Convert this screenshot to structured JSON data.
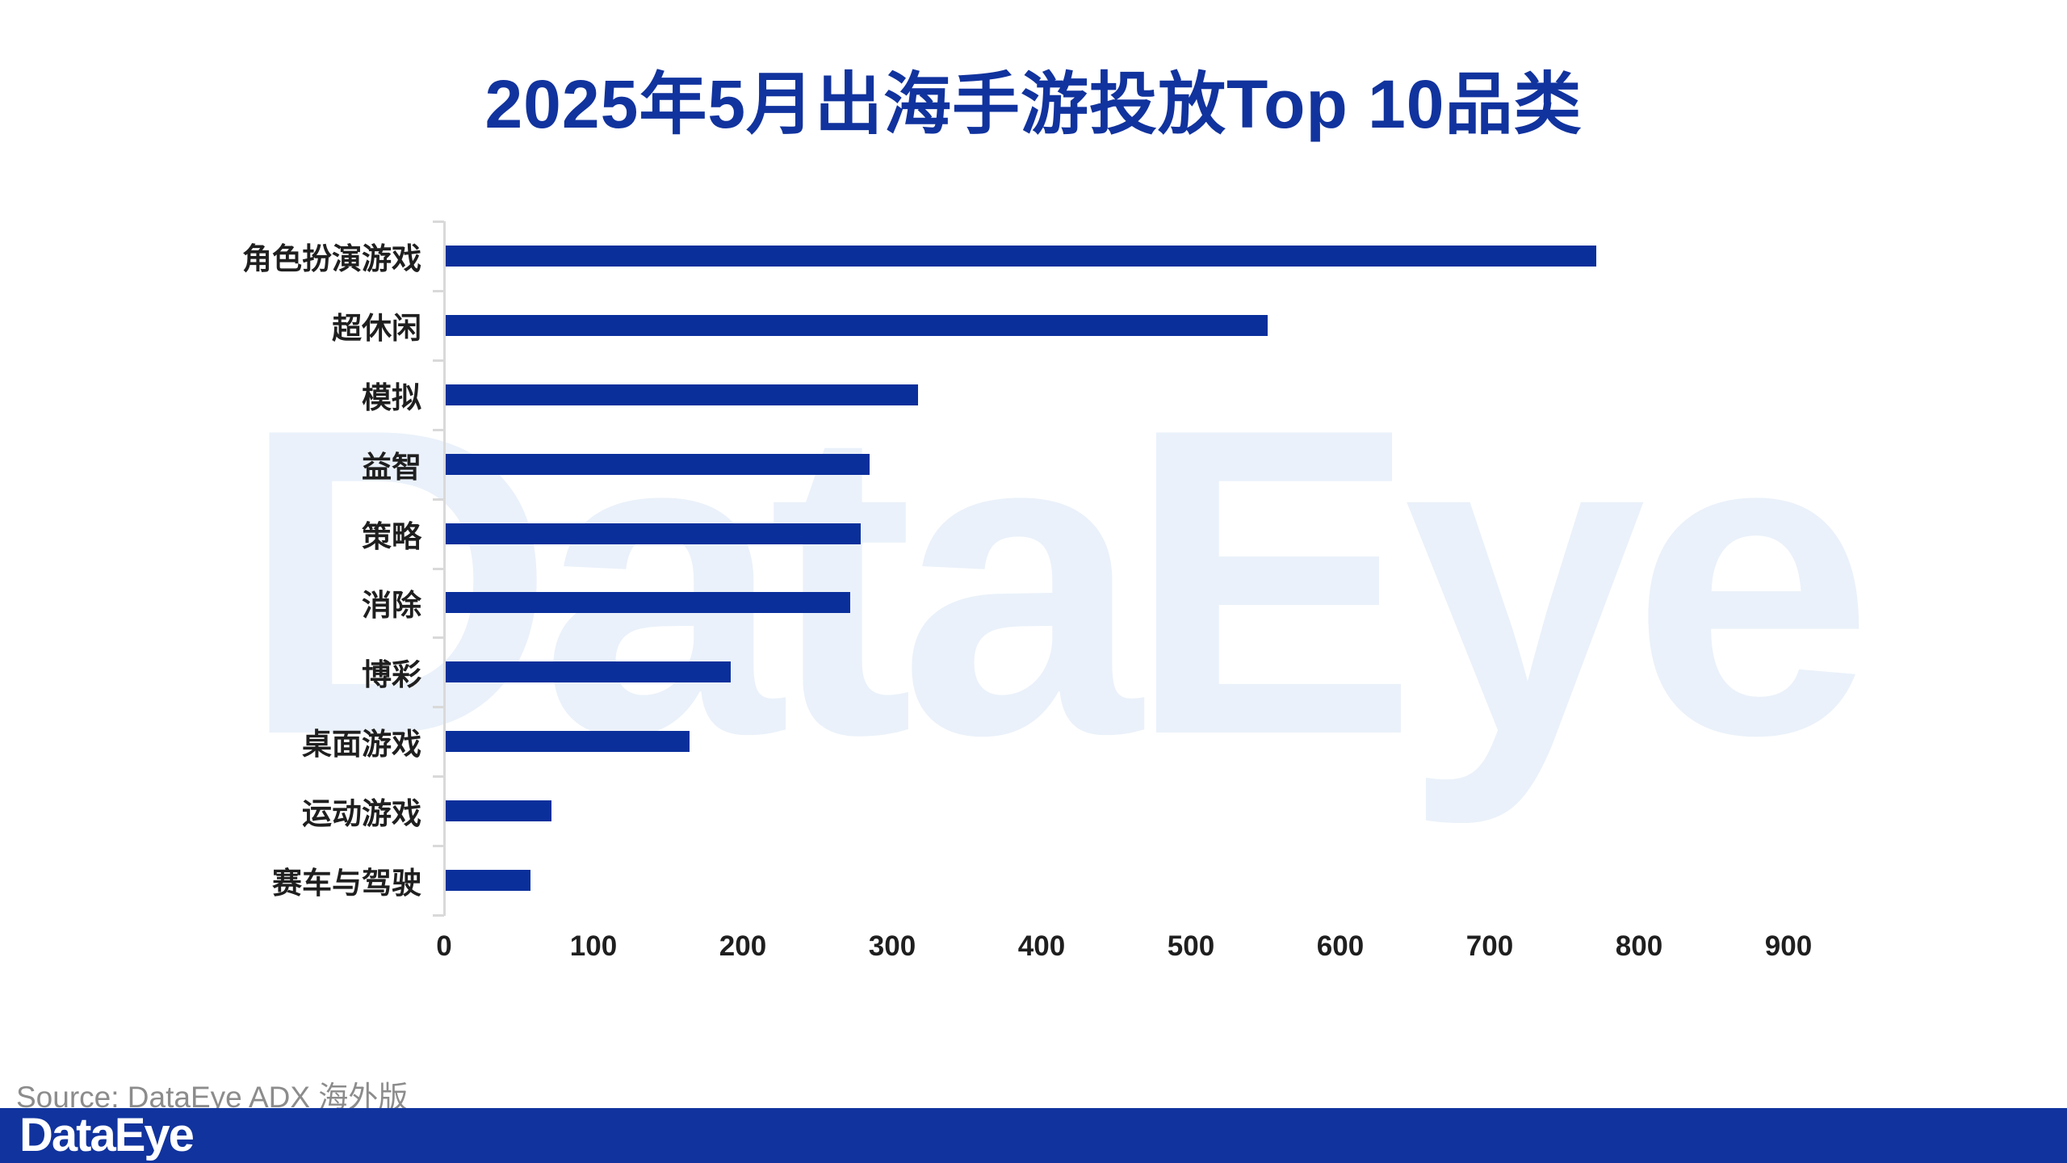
{
  "title": "2025年5月出海手游投放Top 10品类",
  "watermark_text": "DataEye",
  "source_note": "Source: DataEye ADX 海外版",
  "footer": {
    "logo_text": "DataEye"
  },
  "colors": {
    "title_blue": "#11339e",
    "bar_blue": "#0a2f9b",
    "footer_blue": "#10339e",
    "axis_gray": "#d9d9d9",
    "watermark_blue": "#eaf1fa",
    "source_gray": "#8c8c8c"
  },
  "chart_data": {
    "type": "bar",
    "orientation": "horizontal",
    "title": "2025年5月出海手游投放Top 10品类",
    "categories": [
      "角色扮演游戏",
      "超休闲",
      "模拟",
      "益智",
      "策略",
      "消除",
      "博彩",
      "桌面游戏",
      "运动游戏",
      "赛车与驾驶"
    ],
    "values": [
      770,
      550,
      316,
      284,
      278,
      271,
      191,
      163,
      71,
      57
    ],
    "xlabel": "",
    "ylabel": "",
    "xlim": [
      0,
      900
    ],
    "x_ticks": [
      0,
      100,
      200,
      300,
      400,
      500,
      600,
      700,
      800,
      900
    ],
    "grid": false,
    "legend": false
  }
}
